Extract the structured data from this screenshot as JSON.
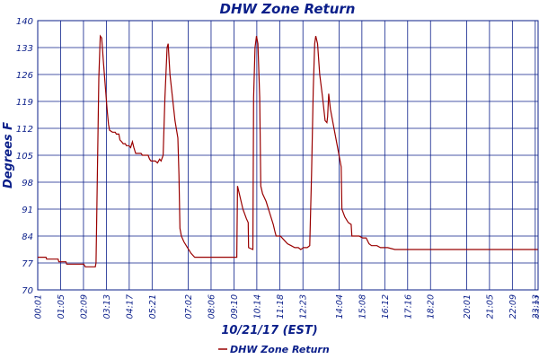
{
  "chart_data": {
    "type": "line",
    "title": "DHW Zone Return",
    "xlabel": "10/21/17 (EST)",
    "ylabel": "Degrees F",
    "ylim": [
      70,
      140
    ],
    "xlim_minutes": [
      1,
      1401
    ],
    "y_ticks": [
      "140",
      "133",
      "126",
      "119",
      "112",
      "105",
      "98",
      "91",
      "84",
      "77",
      "70"
    ],
    "x_ticks": [
      {
        "label": "00:01",
        "t": 1
      },
      {
        "label": "01:05",
        "t": 65
      },
      {
        "label": "02:09",
        "t": 129
      },
      {
        "label": "03:13",
        "t": 193
      },
      {
        "label": "04:17",
        "t": 257
      },
      {
        "label": "05:21",
        "t": 321
      },
      {
        "label": "07:02",
        "t": 422
      },
      {
        "label": "08:06",
        "t": 486
      },
      {
        "label": "09:10",
        "t": 550
      },
      {
        "label": "10:14",
        "t": 614
      },
      {
        "label": "11:18",
        "t": 678
      },
      {
        "label": "12:23",
        "t": 743
      },
      {
        "label": "14:04",
        "t": 844
      },
      {
        "label": "15:08",
        "t": 908
      },
      {
        "label": "16:12",
        "t": 972
      },
      {
        "label": "17:16",
        "t": 1036
      },
      {
        "label": "18:20",
        "t": 1100
      },
      {
        "label": "20:01",
        "t": 1201
      },
      {
        "label": "21:05",
        "t": 1265
      },
      {
        "label": "22:09",
        "t": 1329
      },
      {
        "label": "23:13",
        "t": 1393
      },
      {
        "label": "23:21",
        "t": 1401
      }
    ],
    "grid": true,
    "legend_position": "bottom-left",
    "series": [
      {
        "name": "DHW Zone Return",
        "color": "#990000",
        "points": [
          [
            1,
            78.5
          ],
          [
            24,
            78.5
          ],
          [
            26,
            78
          ],
          [
            58,
            78
          ],
          [
            60,
            77.3
          ],
          [
            80,
            77.3
          ],
          [
            82,
            76.7
          ],
          [
            130,
            76.7
          ],
          [
            134,
            76
          ],
          [
            162,
            76
          ],
          [
            164,
            77
          ],
          [
            168,
            100
          ],
          [
            172,
            125
          ],
          [
            176,
            136
          ],
          [
            180,
            135.5
          ],
          [
            185,
            129
          ],
          [
            190,
            123
          ],
          [
            195,
            117
          ],
          [
            199,
            113
          ],
          [
            202,
            111.5
          ],
          [
            210,
            111
          ],
          [
            218,
            111
          ],
          [
            221,
            110.5
          ],
          [
            228,
            110.5
          ],
          [
            231,
            109
          ],
          [
            236,
            108.5
          ],
          [
            240,
            108
          ],
          [
            246,
            108
          ],
          [
            249,
            107.5
          ],
          [
            256,
            107.5
          ],
          [
            261,
            107
          ],
          [
            266,
            108.5
          ],
          [
            270,
            107
          ],
          [
            275,
            105.5
          ],
          [
            290,
            105.5
          ],
          [
            294,
            105
          ],
          [
            310,
            105
          ],
          [
            314,
            104
          ],
          [
            318,
            103.5
          ],
          [
            330,
            103.5
          ],
          [
            336,
            103
          ],
          [
            342,
            104
          ],
          [
            346,
            103.5
          ],
          [
            352,
            105
          ],
          [
            357,
            120
          ],
          [
            363,
            133
          ],
          [
            366,
            134
          ],
          [
            371,
            126
          ],
          [
            378,
            120
          ],
          [
            385,
            114
          ],
          [
            393,
            109.5
          ],
          [
            396,
            100
          ],
          [
            399,
            86
          ],
          [
            403,
            84
          ],
          [
            410,
            82.5
          ],
          [
            420,
            81
          ],
          [
            430,
            79.5
          ],
          [
            440,
            78.5
          ],
          [
            470,
            78.5
          ],
          [
            520,
            78.5
          ],
          [
            558,
            78.5
          ],
          [
            559,
            88
          ],
          [
            560,
            97
          ],
          [
            565,
            95
          ],
          [
            575,
            91
          ],
          [
            585,
            88.5
          ],
          [
            590,
            87.5
          ],
          [
            591,
            81
          ],
          [
            603,
            80.5
          ],
          [
            605,
            120
          ],
          [
            609,
            133
          ],
          [
            613,
            136
          ],
          [
            617,
            134
          ],
          [
            622,
            120
          ],
          [
            625,
            97
          ],
          [
            630,
            95
          ],
          [
            640,
            93
          ],
          [
            650,
            90
          ],
          [
            660,
            87
          ],
          [
            665,
            85
          ],
          [
            668,
            84
          ],
          [
            680,
            84
          ],
          [
            690,
            83
          ],
          [
            700,
            82
          ],
          [
            710,
            81.5
          ],
          [
            720,
            81
          ],
          [
            730,
            81
          ],
          [
            737,
            80.5
          ],
          [
            745,
            81
          ],
          [
            755,
            81
          ],
          [
            762,
            81.5
          ],
          [
            767,
            100
          ],
          [
            772,
            122
          ],
          [
            776,
            134
          ],
          [
            779,
            136
          ],
          [
            784,
            134
          ],
          [
            790,
            126
          ],
          [
            798,
            120
          ],
          [
            805,
            114
          ],
          [
            810,
            113.5
          ],
          [
            812,
            115
          ],
          [
            815,
            121
          ],
          [
            820,
            117
          ],
          [
            830,
            112
          ],
          [
            840,
            107
          ],
          [
            850,
            102
          ],
          [
            852,
            91
          ],
          [
            860,
            89
          ],
          [
            870,
            87.5
          ],
          [
            878,
            87
          ],
          [
            880,
            84
          ],
          [
            900,
            84
          ],
          [
            910,
            83.5
          ],
          [
            920,
            83.5
          ],
          [
            928,
            82
          ],
          [
            935,
            81.5
          ],
          [
            950,
            81.5
          ],
          [
            960,
            81
          ],
          [
            980,
            81
          ],
          [
            1000,
            80.5
          ],
          [
            1040,
            80.5
          ],
          [
            1400,
            80.5
          ]
        ]
      }
    ]
  }
}
